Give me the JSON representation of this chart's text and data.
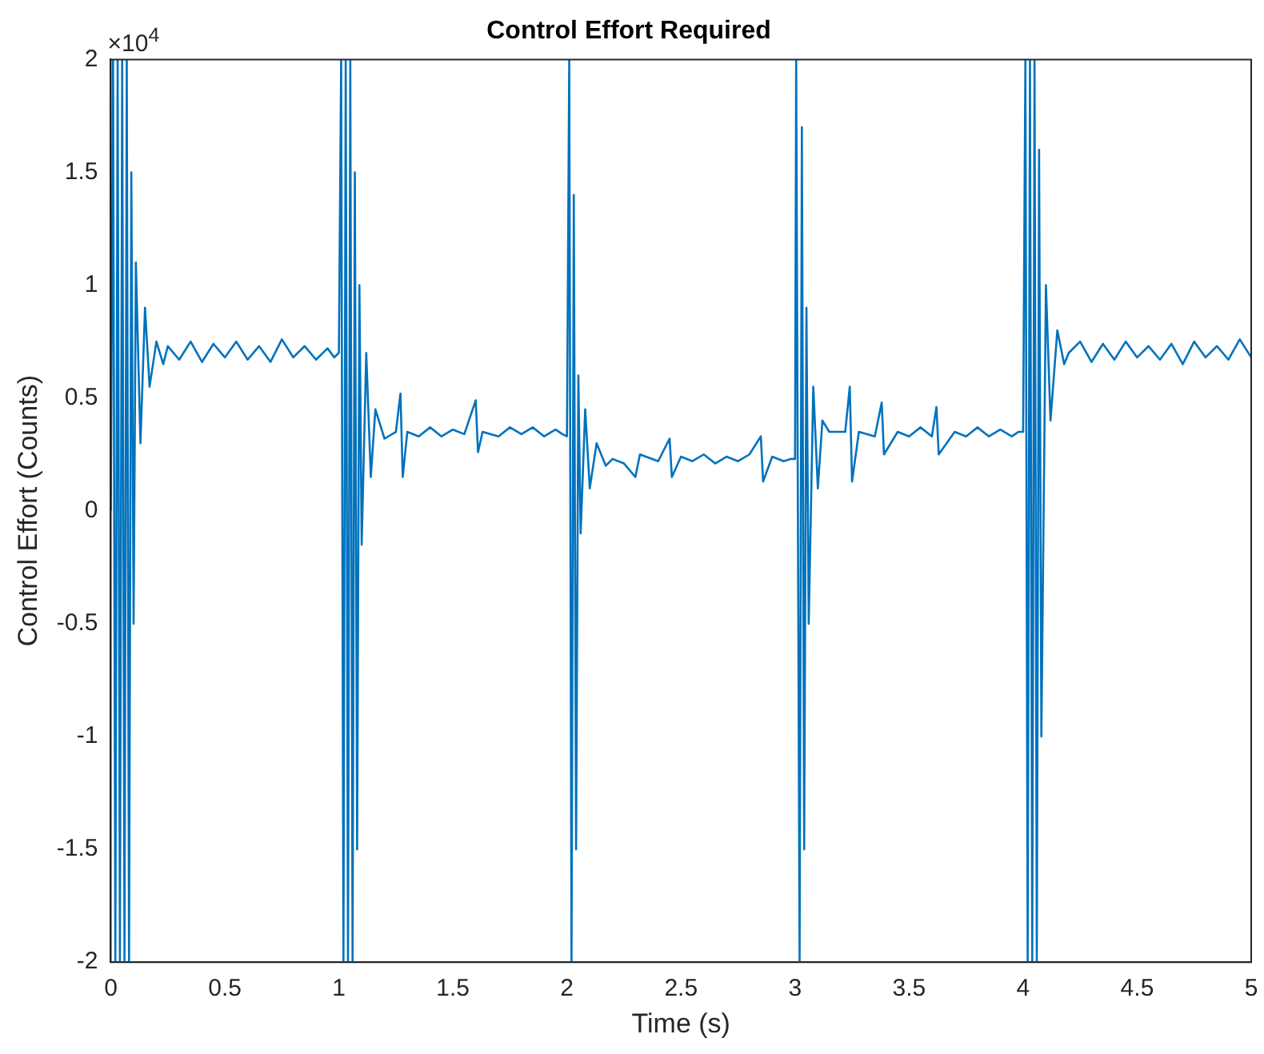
{
  "chart_data": {
    "type": "line",
    "title": "Control Effort Required",
    "xlabel": "Time (s)",
    "ylabel": "Control Effort (Counts)",
    "annotations": [
      "×10$^{4}$"
    ],
    "xlim": [
      0,
      5
    ],
    "xticks": [
      0,
      0.5,
      1,
      1.5,
      2,
      2.5,
      3,
      3.5,
      4,
      4.5,
      5
    ],
    "ylim": [
      -2,
      2
    ],
    "yticks": [
      -2,
      -1.5,
      -1,
      -0.5,
      0,
      0.5,
      1,
      1.5,
      2
    ],
    "grid": false,
    "legend": false,
    "marker": "none",
    "line_style": "solid",
    "series": [
      {
        "color": "#0072bd",
        "x": [
          0,
          0.01,
          0.02,
          0.03,
          0.04,
          0.05,
          0.06,
          0.07,
          0.08,
          0.09,
          0.1,
          0.11,
          0.13,
          0.15,
          0.17,
          0.2,
          0.23,
          0.25,
          0.3,
          0.35,
          0.4,
          0.45,
          0.5,
          0.55,
          0.6,
          0.65,
          0.7,
          0.75,
          0.8,
          0.85,
          0.9,
          0.95,
          0.98,
          1.0,
          1.01,
          1.02,
          1.03,
          1.04,
          1.05,
          1.06,
          1.07,
          1.08,
          1.09,
          1.1,
          1.12,
          1.14,
          1.16,
          1.2,
          1.25,
          1.27,
          1.28,
          1.3,
          1.35,
          1.4,
          1.45,
          1.5,
          1.55,
          1.6,
          1.61,
          1.63,
          1.7,
          1.75,
          1.8,
          1.85,
          1.9,
          1.95,
          1.98,
          2.0,
          2.01,
          2.02,
          2.03,
          2.04,
          2.05,
          2.06,
          2.08,
          2.1,
          2.13,
          2.17,
          2.2,
          2.25,
          2.3,
          2.32,
          2.4,
          2.45,
          2.46,
          2.5,
          2.55,
          2.6,
          2.65,
          2.7,
          2.75,
          2.8,
          2.85,
          2.86,
          2.9,
          2.95,
          2.98,
          3.0,
          3.005,
          3.02,
          3.03,
          3.04,
          3.05,
          3.06,
          3.08,
          3.1,
          3.12,
          3.15,
          3.22,
          3.24,
          3.25,
          3.28,
          3.35,
          3.38,
          3.39,
          3.45,
          3.5,
          3.55,
          3.6,
          3.62,
          3.63,
          3.7,
          3.75,
          3.8,
          3.85,
          3.9,
          3.95,
          3.98,
          4.0,
          4.01,
          4.02,
          4.03,
          4.04,
          4.05,
          4.06,
          4.07,
          4.08,
          4.1,
          4.12,
          4.15,
          4.18,
          4.2,
          4.25,
          4.3,
          4.35,
          4.4,
          4.45,
          4.5,
          4.55,
          4.6,
          4.65,
          4.7,
          4.75,
          4.8,
          4.85,
          4.9,
          4.95,
          5.0
        ],
        "values": [
          0,
          2,
          -2,
          2,
          -2,
          2,
          -2,
          2,
          -2,
          1.5,
          -0.5,
          1.1,
          0.3,
          0.9,
          0.55,
          0.75,
          0.65,
          0.73,
          0.67,
          0.75,
          0.66,
          0.74,
          0.68,
          0.75,
          0.67,
          0.73,
          0.66,
          0.76,
          0.68,
          0.73,
          0.67,
          0.72,
          0.68,
          0.7,
          2,
          -2,
          2,
          -2,
          2,
          -2,
          1.5,
          -1.5,
          1,
          -0.15,
          0.7,
          0.15,
          0.45,
          0.32,
          0.35,
          0.52,
          0.15,
          0.35,
          0.33,
          0.37,
          0.33,
          0.36,
          0.34,
          0.49,
          0.26,
          0.35,
          0.33,
          0.37,
          0.34,
          0.37,
          0.33,
          0.36,
          0.34,
          0.33,
          2,
          -2,
          1.4,
          -1.5,
          0.6,
          -0.1,
          0.45,
          0.1,
          0.3,
          0.2,
          0.23,
          0.21,
          0.15,
          0.25,
          0.22,
          0.32,
          0.15,
          0.24,
          0.22,
          0.25,
          0.21,
          0.24,
          0.22,
          0.25,
          0.33,
          0.13,
          0.24,
          0.22,
          0.23,
          0.23,
          2,
          -2,
          1.7,
          -1.5,
          0.9,
          -0.5,
          0.55,
          0.1,
          0.4,
          0.35,
          0.35,
          0.55,
          0.13,
          0.35,
          0.33,
          0.48,
          0.25,
          0.35,
          0.33,
          0.37,
          0.33,
          0.46,
          0.25,
          0.35,
          0.33,
          0.37,
          0.33,
          0.36,
          0.33,
          0.35,
          0.35,
          2,
          -2,
          2,
          -2,
          2,
          -2,
          1.6,
          -1,
          1,
          0.4,
          0.8,
          0.65,
          0.7,
          0.75,
          0.66,
          0.74,
          0.67,
          0.75,
          0.68,
          0.73,
          0.67,
          0.74,
          0.65,
          0.75,
          0.68,
          0.73,
          0.67,
          0.76,
          0.68
        ]
      }
    ]
  }
}
